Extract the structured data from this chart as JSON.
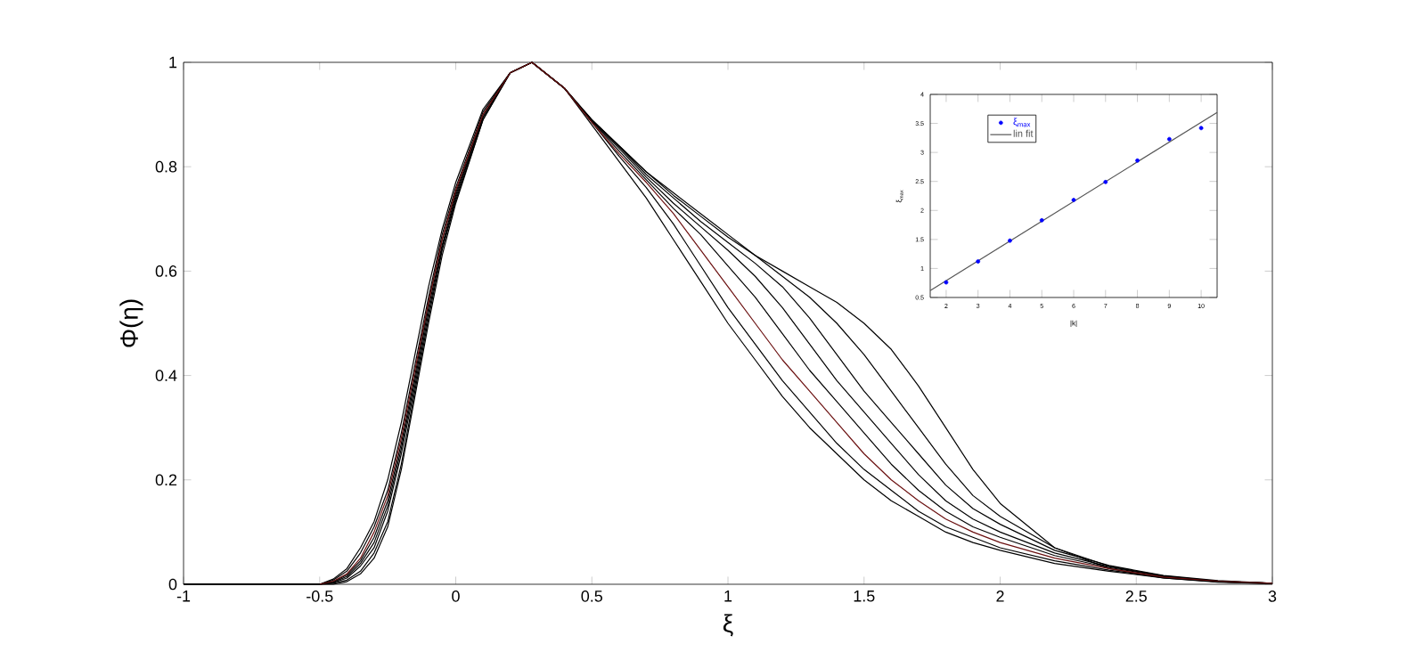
{
  "chart_data": [
    {
      "type": "line",
      "xlabel": "ξ",
      "ylabel": "Φ(η)",
      "xlim": [
        -1,
        3
      ],
      "ylim": [
        0,
        1
      ],
      "xticks": [
        -1,
        -0.5,
        0,
        0.5,
        1,
        1.5,
        2,
        2.5,
        3
      ],
      "yticks": [
        0,
        0.2,
        0.4,
        0.6,
        0.8,
        1
      ],
      "line_style": "solid",
      "x": [
        -1,
        -0.5,
        -0.45,
        -0.4,
        -0.35,
        -0.3,
        -0.25,
        -0.2,
        -0.15,
        -0.1,
        -0.05,
        0,
        0.1,
        0.2,
        0.28,
        0.4,
        0.5,
        0.6,
        0.7,
        0.8,
        0.9,
        1.0,
        1.1,
        1.2,
        1.3,
        1.4,
        1.5,
        1.6,
        1.7,
        1.8,
        1.9,
        2.0,
        2.2,
        2.4,
        2.6,
        2.8,
        3.0
      ],
      "series": [
        {
          "color": "#000000",
          "values": [
            0,
            0,
            0.01,
            0.03,
            0.07,
            0.12,
            0.2,
            0.31,
            0.44,
            0.57,
            0.68,
            0.77,
            0.91,
            0.98,
            1,
            0.95,
            0.88,
            0.81,
            0.74,
            0.66,
            0.58,
            0.5,
            0.43,
            0.36,
            0.3,
            0.25,
            0.2,
            0.16,
            0.13,
            0.1,
            0.08,
            0.065,
            0.04,
            0.025,
            0.012,
            0.005,
            0.002
          ]
        },
        {
          "color": "#000000",
          "values": [
            0,
            0,
            0.008,
            0.025,
            0.06,
            0.11,
            0.18,
            0.29,
            0.42,
            0.55,
            0.67,
            0.76,
            0.905,
            0.98,
            1,
            0.95,
            0.885,
            0.82,
            0.76,
            0.69,
            0.61,
            0.53,
            0.46,
            0.39,
            0.33,
            0.27,
            0.22,
            0.18,
            0.14,
            0.11,
            0.09,
            0.07,
            0.045,
            0.027,
            0.013,
            0.005,
            0.002
          ]
        },
        {
          "color": "#6b1010",
          "values": [
            null,
            0,
            0.006,
            0.02,
            0.05,
            0.1,
            0.17,
            0.28,
            0.41,
            0.54,
            0.66,
            0.755,
            0.9,
            0.98,
            1,
            0.95,
            0.885,
            0.825,
            0.77,
            0.71,
            0.64,
            0.57,
            0.5,
            0.43,
            0.37,
            0.31,
            0.25,
            0.2,
            0.16,
            0.125,
            0.1,
            0.08,
            0.05,
            0.03,
            0.014,
            0.006,
            0.002
          ]
        },
        {
          "color": "#000000",
          "values": [
            0,
            0,
            0.005,
            0.018,
            0.045,
            0.09,
            0.16,
            0.27,
            0.4,
            0.54,
            0.66,
            0.75,
            0.9,
            0.98,
            1,
            0.95,
            0.887,
            0.83,
            0.775,
            0.72,
            0.67,
            0.61,
            0.55,
            0.48,
            0.41,
            0.35,
            0.29,
            0.23,
            0.18,
            0.14,
            0.11,
            0.09,
            0.055,
            0.032,
            0.015,
            0.006,
            0.002
          ]
        },
        {
          "color": "#000000",
          "values": [
            0,
            0,
            0.004,
            0.015,
            0.04,
            0.08,
            0.15,
            0.26,
            0.39,
            0.53,
            0.65,
            0.745,
            0.895,
            0.98,
            1,
            0.95,
            0.888,
            0.835,
            0.78,
            0.73,
            0.685,
            0.64,
            0.59,
            0.53,
            0.46,
            0.39,
            0.33,
            0.27,
            0.21,
            0.16,
            0.125,
            0.1,
            0.06,
            0.034,
            0.016,
            0.006,
            0.002
          ]
        },
        {
          "color": "#000000",
          "values": [
            0,
            0,
            0.003,
            0.012,
            0.035,
            0.07,
            0.14,
            0.25,
            0.38,
            0.52,
            0.645,
            0.74,
            0.895,
            0.98,
            1,
            0.95,
            0.889,
            0.838,
            0.785,
            0.74,
            0.695,
            0.655,
            0.615,
            0.57,
            0.51,
            0.44,
            0.37,
            0.31,
            0.25,
            0.19,
            0.145,
            0.115,
            0.065,
            0.036,
            0.017,
            0.007,
            0.002
          ]
        },
        {
          "color": "#000000",
          "values": [
            0,
            0,
            0.002,
            0.008,
            0.025,
            0.06,
            0.12,
            0.23,
            0.37,
            0.51,
            0.64,
            0.735,
            0.89,
            0.98,
            1,
            0.95,
            0.89,
            0.84,
            0.79,
            0.745,
            0.705,
            0.665,
            0.63,
            0.59,
            0.55,
            0.5,
            0.44,
            0.37,
            0.3,
            0.23,
            0.17,
            0.13,
            0.07,
            0.035,
            0.015,
            0.005,
            0.001
          ]
        },
        {
          "color": "#000000",
          "values": [
            0,
            0,
            0,
            0.005,
            0.02,
            0.05,
            0.11,
            0.22,
            0.36,
            0.5,
            0.63,
            0.73,
            0.89,
            0.98,
            1,
            0.95,
            0.89,
            0.84,
            0.79,
            0.75,
            0.71,
            0.67,
            0.63,
            0.6,
            0.57,
            0.54,
            0.5,
            0.45,
            0.38,
            0.3,
            0.22,
            0.155,
            0.07,
            0.03,
            0.012,
            0.004,
            0.001
          ]
        }
      ]
    },
    {
      "type": "scatter",
      "xlabel": "|k|",
      "ylabel": "ξ$_{max}$",
      "xlim": [
        1.5,
        10.5
      ],
      "ylim": [
        0.5,
        4
      ],
      "xticks": [
        2,
        3,
        4,
        5,
        6,
        7,
        8,
        9,
        10
      ],
      "yticks": [
        0.5,
        1,
        1.5,
        2,
        2.5,
        3,
        3.5,
        4
      ],
      "legend": "top left",
      "series": [
        {
          "name": "ξ$_{max}$",
          "color": "#0000ff",
          "marker": "circle",
          "x": [
            2,
            3,
            4,
            5,
            6,
            7,
            8,
            9,
            10
          ],
          "values": [
            0.76,
            1.12,
            1.48,
            1.83,
            2.18,
            2.49,
            2.86,
            3.23,
            3.42
          ]
        },
        {
          "name": "lin fit",
          "type": "line",
          "color": "#555555",
          "x": [
            1.5,
            10.5
          ],
          "values": [
            0.62,
            3.69
          ]
        }
      ]
    }
  ]
}
